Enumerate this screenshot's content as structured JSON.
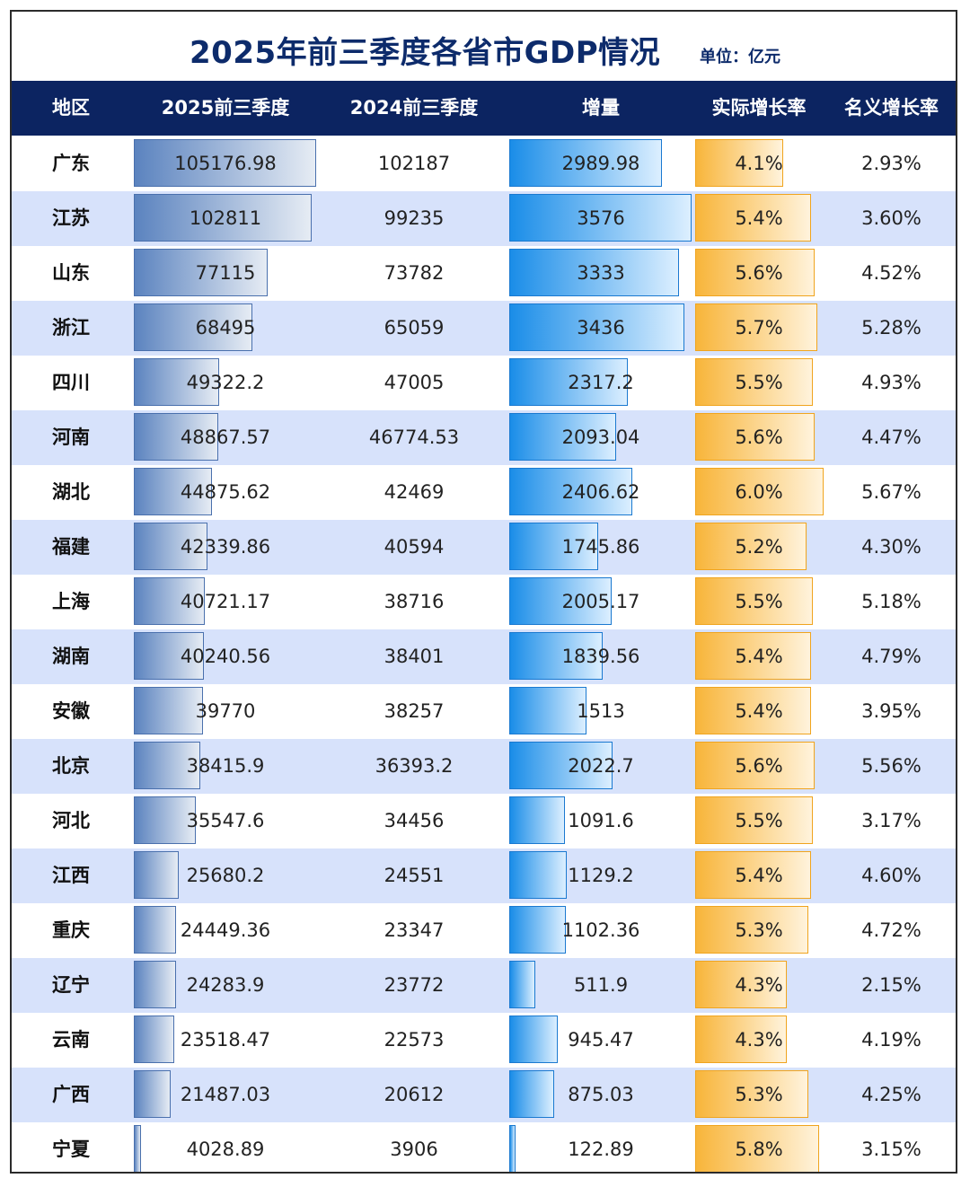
{
  "title": "2025年前三季度各省市GDP情况",
  "unit": "单位：亿元",
  "headers": {
    "region": "地区",
    "gdp2025": "2025前三季度",
    "gdp2024": "2024前三季度",
    "increase": "增量",
    "real_growth": "实际增长率",
    "nominal_growth": "名义增长率"
  },
  "colors": {
    "header_bg": "#0c2461",
    "title_text": "#0d2b6b",
    "row_alt": "#d7e2fb",
    "bar_gdp": "#5b83bf",
    "bar_increase": "#1a8de8",
    "bar_real_growth": "#f8b53a"
  },
  "chart_data": {
    "type": "table",
    "rows": [
      {
        "region": "广东",
        "gdp2025": "105176.98",
        "gdp2024": "102187",
        "increase": "2989.98",
        "real": "4.1%",
        "nominal": "2.93%"
      },
      {
        "region": "江苏",
        "gdp2025": "102811",
        "gdp2024": "99235",
        "increase": "3576",
        "real": "5.4%",
        "nominal": "3.60%"
      },
      {
        "region": "山东",
        "gdp2025": "77115",
        "gdp2024": "73782",
        "increase": "3333",
        "real": "5.6%",
        "nominal": "4.52%"
      },
      {
        "region": "浙江",
        "gdp2025": "68495",
        "gdp2024": "65059",
        "increase": "3436",
        "real": "5.7%",
        "nominal": "5.28%"
      },
      {
        "region": "四川",
        "gdp2025": "49322.2",
        "gdp2024": "47005",
        "increase": "2317.2",
        "real": "5.5%",
        "nominal": "4.93%"
      },
      {
        "region": "河南",
        "gdp2025": "48867.57",
        "gdp2024": "46774.53",
        "increase": "2093.04",
        "real": "5.6%",
        "nominal": "4.47%"
      },
      {
        "region": "湖北",
        "gdp2025": "44875.62",
        "gdp2024": "42469",
        "increase": "2406.62",
        "real": "6.0%",
        "nominal": "5.67%"
      },
      {
        "region": "福建",
        "gdp2025": "42339.86",
        "gdp2024": "40594",
        "increase": "1745.86",
        "real": "5.2%",
        "nominal": "4.30%"
      },
      {
        "region": "上海",
        "gdp2025": "40721.17",
        "gdp2024": "38716",
        "increase": "2005.17",
        "real": "5.5%",
        "nominal": "5.18%"
      },
      {
        "region": "湖南",
        "gdp2025": "40240.56",
        "gdp2024": "38401",
        "increase": "1839.56",
        "real": "5.4%",
        "nominal": "4.79%"
      },
      {
        "region": "安徽",
        "gdp2025": "39770",
        "gdp2024": "38257",
        "increase": "1513",
        "real": "5.4%",
        "nominal": "3.95%"
      },
      {
        "region": "北京",
        "gdp2025": "38415.9",
        "gdp2024": "36393.2",
        "increase": "2022.7",
        "real": "5.6%",
        "nominal": "5.56%"
      },
      {
        "region": "河北",
        "gdp2025": "35547.6",
        "gdp2024": "34456",
        "increase": "1091.6",
        "real": "5.5%",
        "nominal": "3.17%"
      },
      {
        "region": "江西",
        "gdp2025": "25680.2",
        "gdp2024": "24551",
        "increase": "1129.2",
        "real": "5.4%",
        "nominal": "4.60%"
      },
      {
        "region": "重庆",
        "gdp2025": "24449.36",
        "gdp2024": "23347",
        "increase": "1102.36",
        "real": "5.3%",
        "nominal": "4.72%"
      },
      {
        "region": "辽宁",
        "gdp2025": "24283.9",
        "gdp2024": "23772",
        "increase": "511.9",
        "real": "4.3%",
        "nominal": "2.15%"
      },
      {
        "region": "云南",
        "gdp2025": "23518.47",
        "gdp2024": "22573",
        "increase": "945.47",
        "real": "4.3%",
        "nominal": "4.19%"
      },
      {
        "region": "广西",
        "gdp2025": "21487.03",
        "gdp2024": "20612",
        "increase": "875.03",
        "real": "5.3%",
        "nominal": "4.25%"
      },
      {
        "region": "宁夏",
        "gdp2025": "4028.89",
        "gdp2024": "3906",
        "increase": "122.89",
        "real": "5.8%",
        "nominal": "3.15%"
      }
    ]
  }
}
